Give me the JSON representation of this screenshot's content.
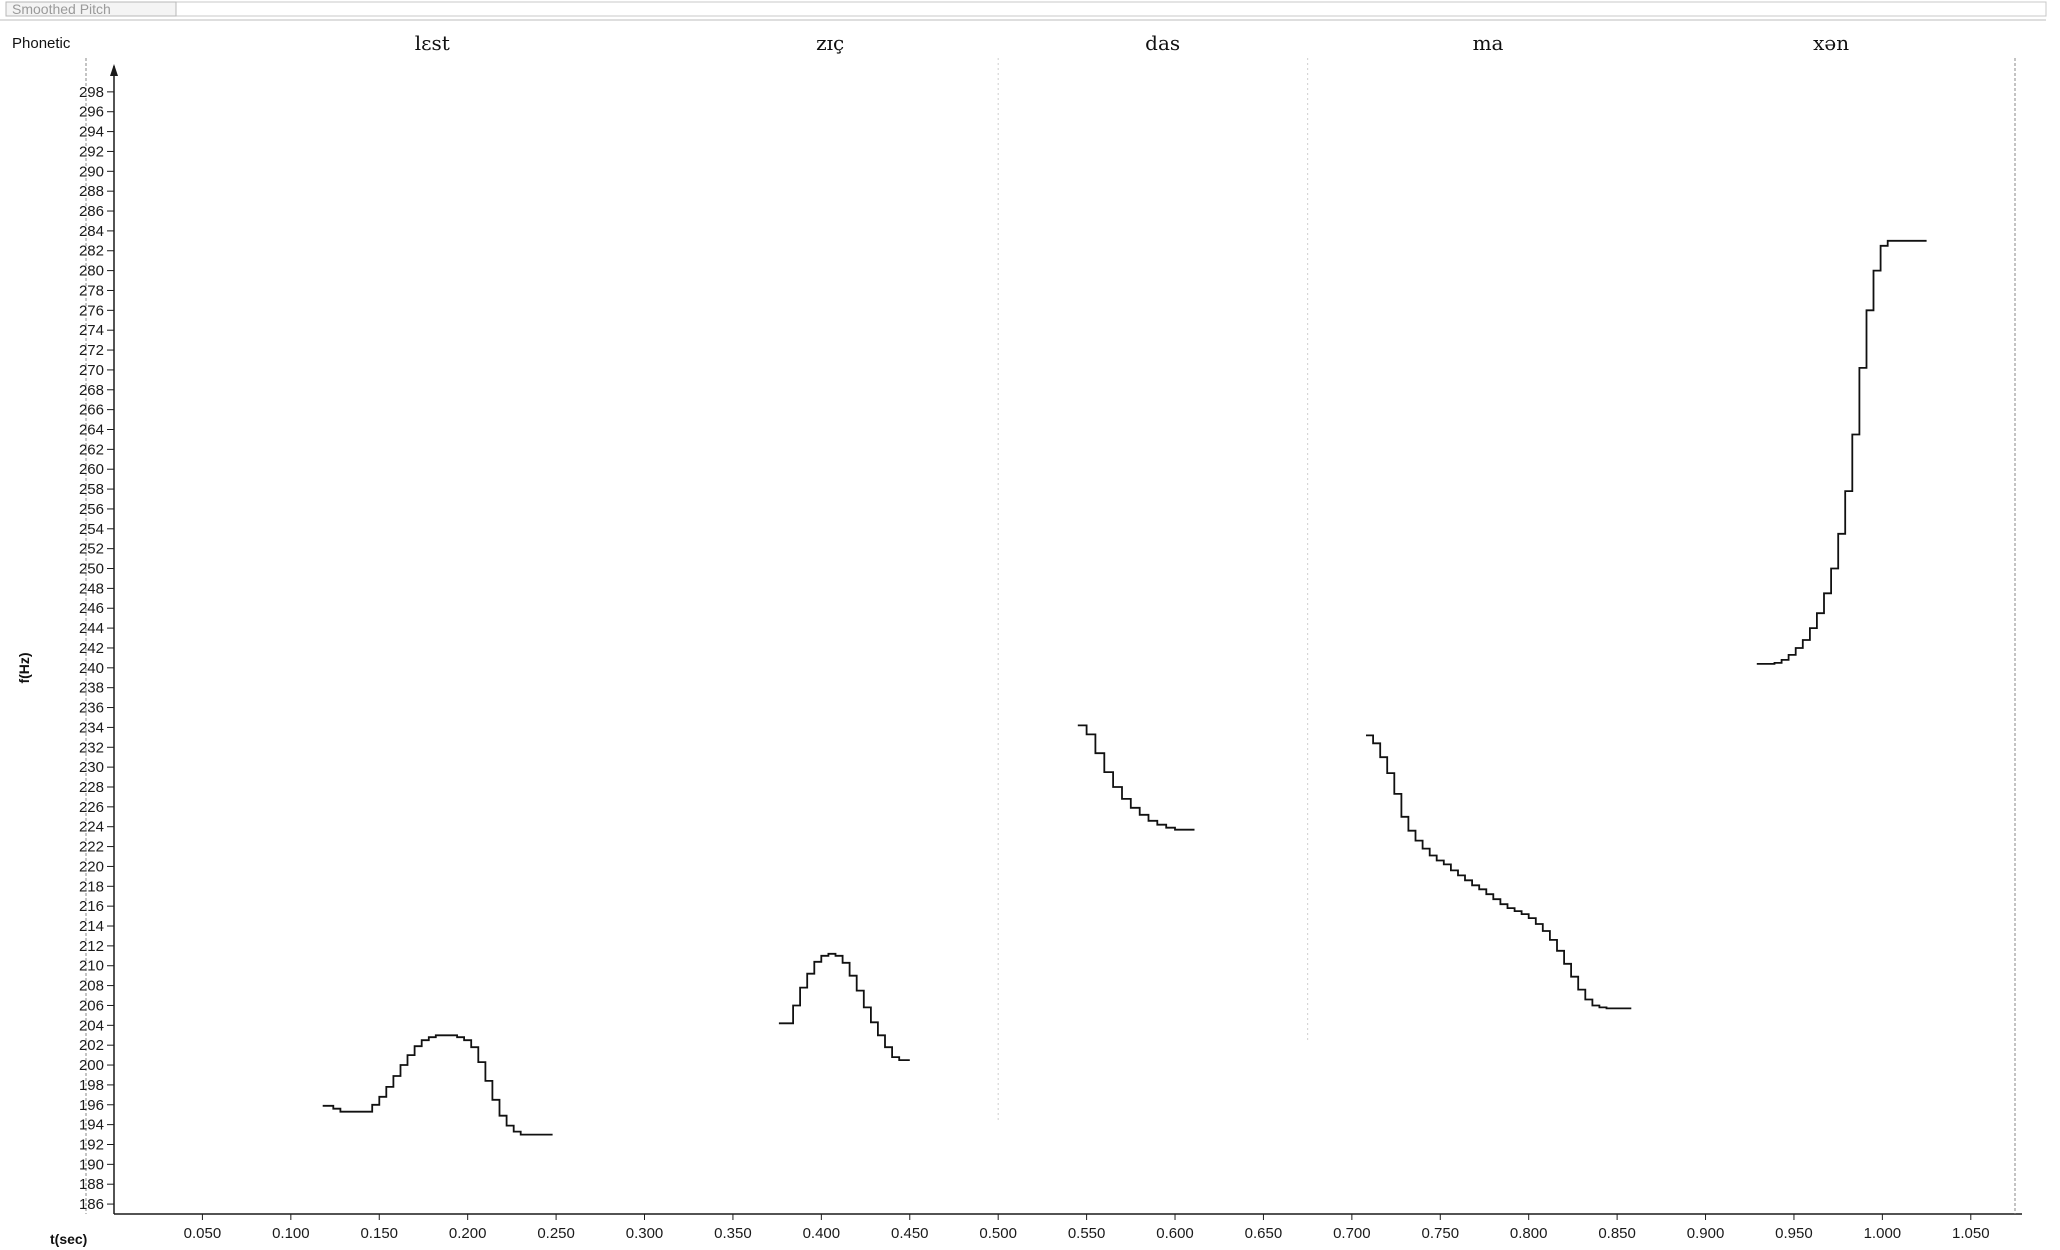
{
  "window": {
    "title": "Smoothed Pitch"
  },
  "tier": {
    "label": "Phonetic",
    "words": [
      {
        "text": "lɛst",
        "t": 0.18
      },
      {
        "text": "zɪç",
        "t": 0.405
      },
      {
        "text": "das",
        "t": 0.593
      },
      {
        "text": "ma",
        "t": 0.777
      },
      {
        "text": "xən",
        "t": 0.971
      }
    ]
  },
  "chart_data": {
    "type": "line",
    "ylabel": "f(Hz)",
    "xlabel": "t(sec)",
    "xlim": [
      0.0,
      1.075
    ],
    "ylim": [
      185,
      300
    ],
    "x_ticks": [
      0.05,
      0.1,
      0.15,
      0.2,
      0.25,
      0.3,
      0.35,
      0.4,
      0.45,
      0.5,
      0.55,
      0.6,
      0.65,
      0.7,
      0.75,
      0.8,
      0.85,
      0.9,
      0.95,
      1.0,
      1.05
    ],
    "x_tick_labels": [
      "0.050",
      "0.100",
      "0.150",
      "0.200",
      "0.250",
      "0.300",
      "0.350",
      "0.400",
      "0.450",
      "0.500",
      "0.550",
      "0.600",
      "0.650",
      "0.700",
      "0.750",
      "0.800",
      "0.850",
      "0.900",
      "0.950",
      "1.000",
      "1.050"
    ],
    "y_ticks": [
      186,
      188,
      190,
      192,
      194,
      196,
      198,
      200,
      202,
      204,
      206,
      208,
      210,
      212,
      214,
      216,
      218,
      220,
      222,
      224,
      226,
      228,
      230,
      232,
      234,
      236,
      238,
      240,
      242,
      244,
      246,
      248,
      250,
      252,
      254,
      256,
      258,
      260,
      262,
      264,
      266,
      268,
      270,
      272,
      274,
      276,
      278,
      280,
      282,
      284,
      286,
      288,
      290,
      292,
      294,
      296,
      298
    ],
    "y_tick_labels": [
      "186",
      "188",
      "190",
      "192",
      "194",
      "196",
      "198",
      "200",
      "202",
      "204",
      "206",
      "208",
      "210",
      "212",
      "214",
      "216",
      "218",
      "220",
      "222",
      "224",
      "226",
      "228",
      "230",
      "232",
      "234",
      "236",
      "238",
      "240",
      "242",
      "244",
      "246",
      "248",
      "250",
      "252",
      "254",
      "256",
      "258",
      "260",
      "262",
      "264",
      "266",
      "268",
      "270",
      "272",
      "274",
      "276",
      "278",
      "280",
      "282",
      "284",
      "286",
      "288",
      "290",
      "292",
      "294",
      "296",
      "298"
    ],
    "series": [
      {
        "t": [
          0.118,
          0.124,
          0.128,
          0.134,
          0.14,
          0.146,
          0.15,
          0.154,
          0.158,
          0.162,
          0.166,
          0.17,
          0.174,
          0.178,
          0.182,
          0.186,
          0.19,
          0.194,
          0.198,
          0.202,
          0.206,
          0.21,
          0.214,
          0.218,
          0.222,
          0.226,
          0.23,
          0.234,
          0.238,
          0.242
        ],
        "f": [
          195.9,
          195.6,
          195.3,
          195.3,
          195.3,
          196.0,
          196.8,
          197.8,
          198.9,
          200.0,
          201.0,
          201.9,
          202.5,
          202.8,
          203.0,
          203.0,
          203.0,
          202.8,
          202.5,
          201.8,
          200.3,
          198.4,
          196.5,
          194.9,
          193.9,
          193.3,
          193.0,
          193.0,
          193.0,
          193.0
        ]
      },
      {
        "t": [
          0.376,
          0.38,
          0.384,
          0.388,
          0.392,
          0.396,
          0.4,
          0.404,
          0.408,
          0.412,
          0.416,
          0.42,
          0.424,
          0.428,
          0.432,
          0.436,
          0.44,
          0.444
        ],
        "f": [
          204.2,
          204.2,
          206.0,
          207.8,
          209.2,
          210.4,
          211.0,
          211.2,
          211.0,
          210.3,
          209.0,
          207.5,
          205.8,
          204.3,
          203.0,
          201.8,
          200.8,
          200.5
        ]
      },
      {
        "t": [
          0.545,
          0.55,
          0.555,
          0.56,
          0.565,
          0.57,
          0.575,
          0.58,
          0.585,
          0.59,
          0.595,
          0.6,
          0.605
        ],
        "f": [
          234.2,
          233.3,
          231.4,
          229.5,
          228.0,
          226.8,
          225.9,
          225.2,
          224.6,
          224.2,
          223.9,
          223.7,
          223.7
        ]
      },
      {
        "t": [
          0.708,
          0.712,
          0.716,
          0.72,
          0.724,
          0.728,
          0.732,
          0.736,
          0.74,
          0.744,
          0.748,
          0.752,
          0.756,
          0.76,
          0.764,
          0.768,
          0.772,
          0.776,
          0.78,
          0.784,
          0.788,
          0.792,
          0.796,
          0.8,
          0.804,
          0.808,
          0.812,
          0.816,
          0.82,
          0.824,
          0.828,
          0.832,
          0.836,
          0.84,
          0.844,
          0.848,
          0.852
        ],
        "f": [
          233.2,
          232.4,
          231.0,
          229.4,
          227.3,
          225.0,
          223.6,
          222.6,
          221.8,
          221.1,
          220.6,
          220.2,
          219.6,
          219.1,
          218.6,
          218.1,
          217.7,
          217.2,
          216.7,
          216.2,
          215.8,
          215.5,
          215.2,
          214.8,
          214.2,
          213.5,
          212.6,
          211.5,
          210.2,
          208.9,
          207.6,
          206.6,
          206.0,
          205.8,
          205.7,
          205.7,
          205.7
        ]
      },
      {
        "t": [
          0.929,
          0.934,
          0.939,
          0.943,
          0.947,
          0.951,
          0.955,
          0.959,
          0.963,
          0.967,
          0.971,
          0.975,
          0.979,
          0.983,
          0.987,
          0.991,
          0.995,
          0.999,
          1.003,
          1.007,
          1.011,
          1.015,
          1.019
        ],
        "f": [
          240.4,
          240.4,
          240.5,
          240.8,
          241.3,
          242.0,
          242.8,
          244.0,
          245.5,
          247.5,
          250.0,
          253.5,
          257.8,
          263.5,
          270.2,
          276.0,
          280.0,
          282.5,
          283.0,
          283.0,
          283.0,
          283.0,
          283.0
        ]
      }
    ],
    "grid": false,
    "line_color": "#111111"
  }
}
